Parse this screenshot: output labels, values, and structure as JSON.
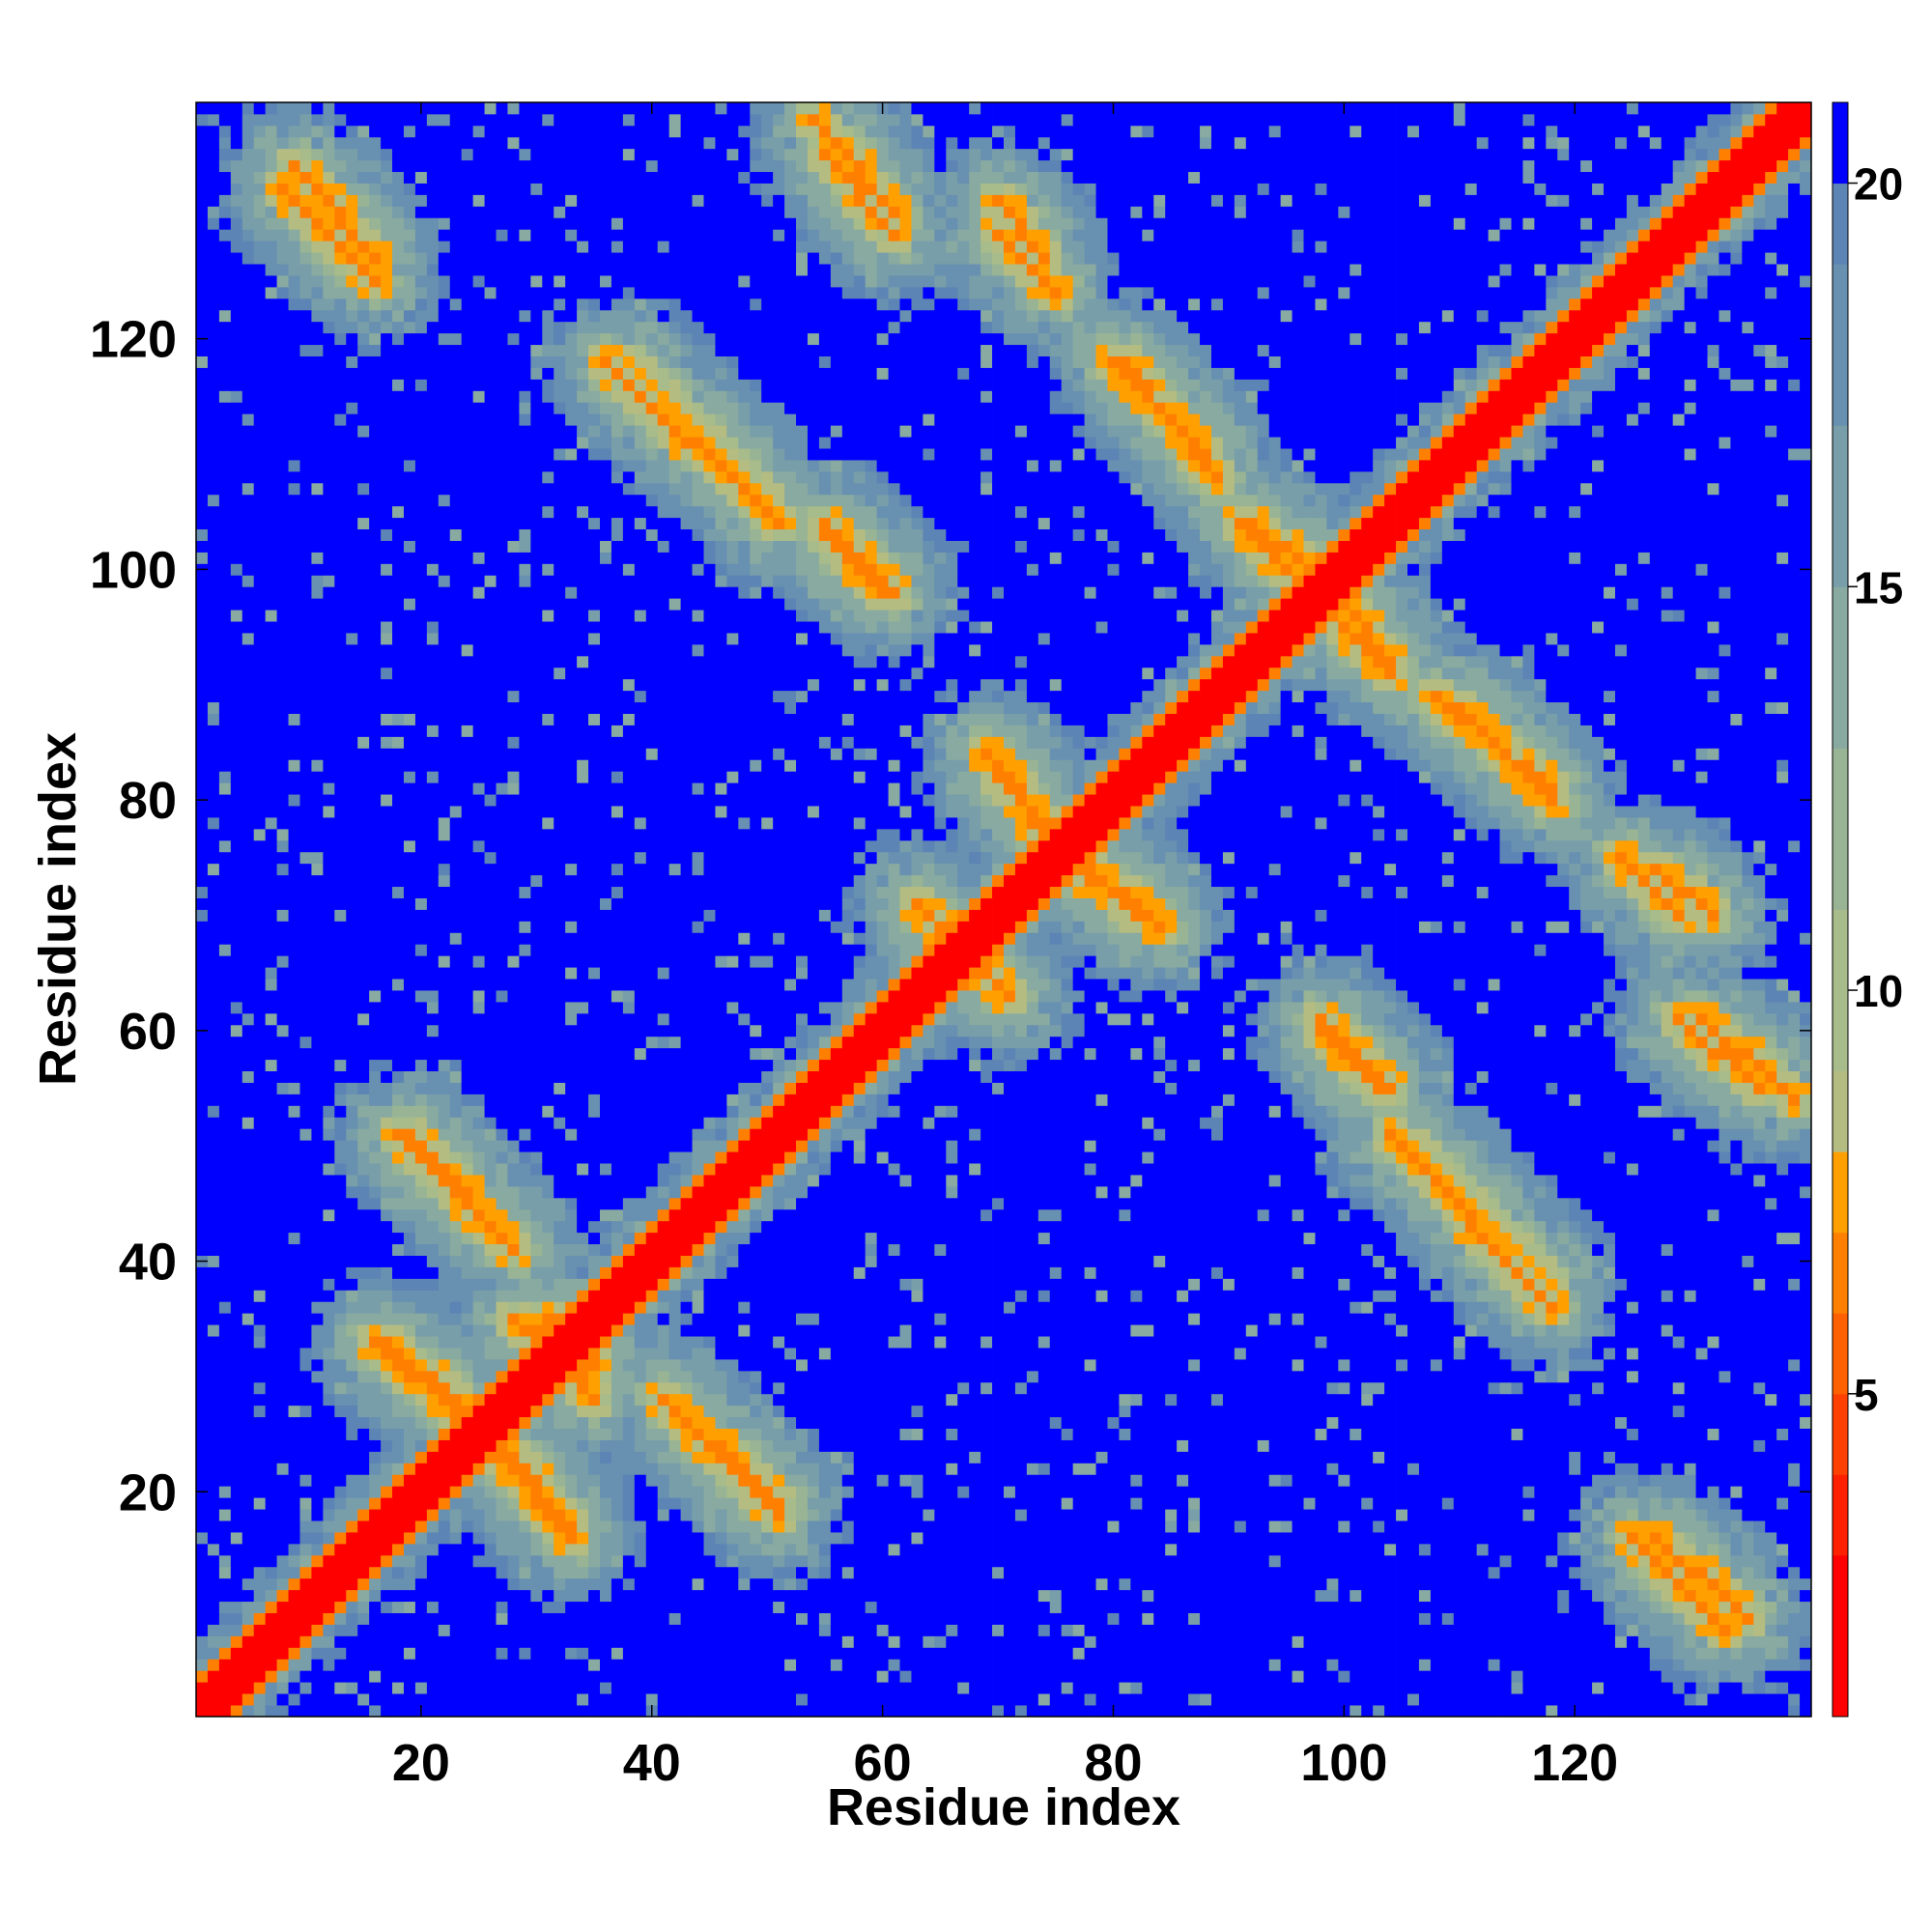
{
  "chart_data": {
    "type": "heatmap",
    "title": "",
    "xlabel": "Residue index",
    "ylabel": "Residue index",
    "xlim": [
      1,
      140
    ],
    "ylim": [
      1,
      140
    ],
    "x_ticks": [
      20,
      40,
      60,
      80,
      100,
      120
    ],
    "y_ticks": [
      20,
      40,
      60,
      80,
      100,
      120
    ],
    "colorbar": {
      "range": [
        1,
        21
      ],
      "ticks": [
        5,
        10,
        15,
        20
      ],
      "levels": [
        {
          "min": 0,
          "max": 3,
          "color": "#ff0000"
        },
        {
          "min": 3,
          "max": 4,
          "color": "#ff2000"
        },
        {
          "min": 4,
          "max": 5,
          "color": "#ff4000"
        },
        {
          "min": 5,
          "max": 6,
          "color": "#ff6000"
        },
        {
          "min": 6,
          "max": 7,
          "color": "#ff8000"
        },
        {
          "min": 7,
          "max": 8,
          "color": "#ffa000"
        },
        {
          "min": 8,
          "max": 9,
          "color": "#b4bc82"
        },
        {
          "min": 9,
          "max": 11,
          "color": "#a8bb8a"
        },
        {
          "min": 11,
          "max": 13,
          "color": "#98b494"
        },
        {
          "min": 13,
          "max": 15,
          "color": "#88aaa0"
        },
        {
          "min": 15,
          "max": 17,
          "color": "#789eaa"
        },
        {
          "min": 17,
          "max": 19,
          "color": "#6890b0"
        },
        {
          "min": 19,
          "max": 20,
          "color": "#5c84b4"
        },
        {
          "min": 20,
          "max": 99,
          "color": "#0000ff"
        }
      ]
    },
    "diagonal": {
      "band_half_width": 2,
      "value": 2
    },
    "contact_bands": [
      {
        "i_from": 9,
        "j_from": 135,
        "i_to": 16,
        "j_to": 127,
        "value": 6
      },
      {
        "i_from": 38,
        "j_from": 118,
        "i_to": 50,
        "j_to": 106,
        "value": 7
      },
      {
        "i_from": 54,
        "j_from": 139,
        "i_to": 61,
        "j_to": 131,
        "value": 6
      },
      {
        "i_from": 55,
        "j_from": 104,
        "i_to": 60,
        "j_to": 98,
        "value": 6
      },
      {
        "i_from": 70,
        "j_from": 132,
        "i_to": 74,
        "j_to": 127,
        "value": 6
      },
      {
        "i_from": 80,
        "j_from": 118,
        "i_to": 88,
        "j_to": 110,
        "value": 6
      },
      {
        "i_from": 92,
        "j_from": 104,
        "i_to": 97,
        "j_to": 100,
        "value": 6
      },
      {
        "i_from": 98,
        "j_from": 97,
        "i_to": 104,
        "j_to": 91,
        "value": 6
      },
      {
        "i_from": 108,
        "j_from": 89,
        "i_to": 118,
        "j_to": 81,
        "value": 6
      },
      {
        "i_from": 124,
        "j_from": 75,
        "i_to": 129,
        "j_to": 70,
        "value": 6
      },
      {
        "i_from": 129,
        "j_from": 61,
        "i_to": 136,
        "j_to": 55,
        "value": 6
      },
      {
        "i_from": 98,
        "j_from": 61,
        "i_to": 103,
        "j_to": 55,
        "value": 6
      },
      {
        "i_from": 104,
        "j_from": 51,
        "i_to": 118,
        "j_to": 36,
        "value": 6
      },
      {
        "i_from": 125,
        "j_from": 16,
        "i_to": 133,
        "j_to": 8,
        "value": 6
      },
      {
        "i_from": 18,
        "j_from": 51,
        "i_to": 28,
        "j_to": 41,
        "value": 6
      },
      {
        "i_from": 16,
        "j_from": 33,
        "i_to": 23,
        "j_to": 27,
        "value": 6
      },
      {
        "i_from": 26,
        "j_from": 25,
        "i_to": 33,
        "j_to": 17,
        "value": 6
      },
      {
        "i_from": 41,
        "j_from": 28,
        "i_to": 51,
        "j_to": 19,
        "value": 6
      },
      {
        "i_from": 69,
        "j_from": 84,
        "i_to": 74,
        "j_to": 78,
        "value": 6
      },
      {
        "i_from": 77,
        "j_from": 74,
        "i_to": 84,
        "j_to": 69,
        "value": 6
      },
      {
        "i_from": 63,
        "j_from": 71,
        "i_to": 66,
        "j_to": 67,
        "value": 6
      },
      {
        "i_from": 67,
        "j_from": 67,
        "i_to": 71,
        "j_to": 63,
        "value": 6
      },
      {
        "i_from": 28,
        "j_from": 35,
        "i_to": 35,
        "j_to": 31,
        "value": 6
      }
    ]
  }
}
